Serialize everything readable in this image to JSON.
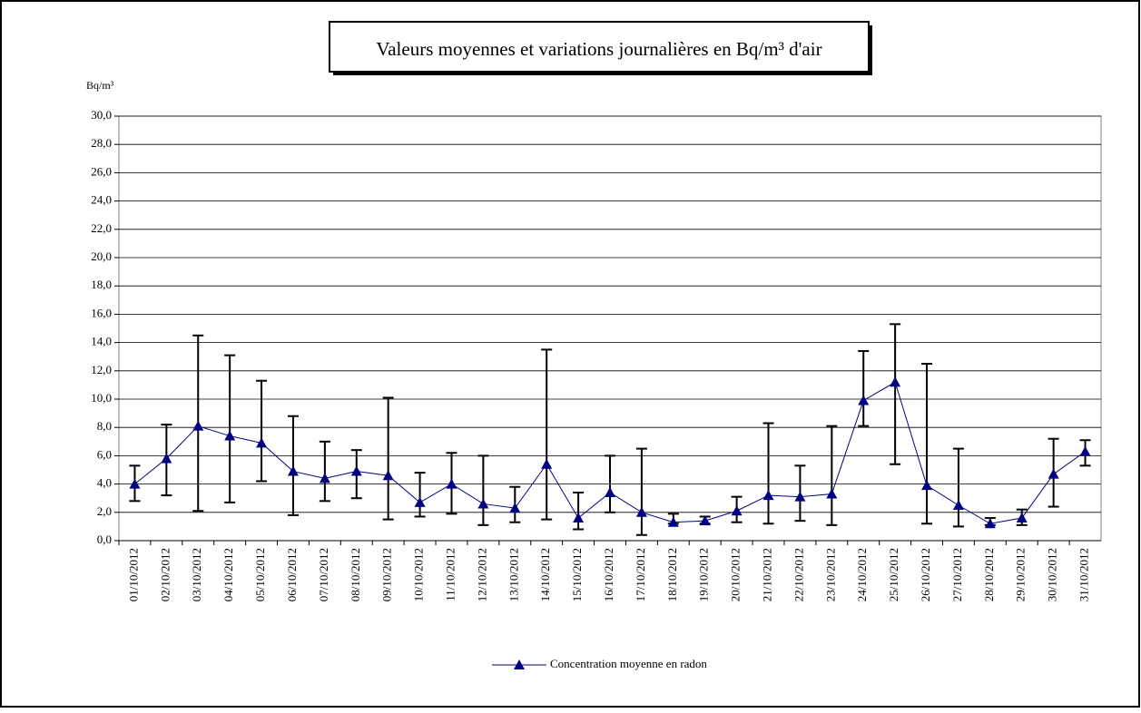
{
  "chart_data": {
    "type": "line",
    "title": "Valeurs moyennes et variations journalières en Bq/m³ d'air",
    "y_label": "Bq/m³",
    "categories": [
      "01/10/2012",
      "02/10/2012",
      "03/10/2012",
      "04/10/2012",
      "05/10/2012",
      "06/10/2012",
      "07/10/2012",
      "08/10/2012",
      "09/10/2012",
      "10/10/2012",
      "11/10/2012",
      "12/10/2012",
      "13/10/2012",
      "14/10/2012",
      "15/10/2012",
      "16/10/2012",
      "17/10/2012",
      "18/10/2012",
      "19/10/2012",
      "20/10/2012",
      "21/10/2012",
      "22/10/2012",
      "23/10/2012",
      "24/10/2012",
      "25/10/2012",
      "26/10/2012",
      "27/10/2012",
      "28/10/2012",
      "29/10/2012",
      "30/10/2012",
      "31/10/2012"
    ],
    "series": [
      {
        "name": "Concentration moyenne en radon",
        "color": "#000080",
        "values": [
          4.0,
          5.8,
          8.1,
          7.4,
          6.9,
          4.9,
          4.4,
          4.9,
          4.6,
          2.7,
          4.0,
          2.6,
          2.3,
          5.4,
          1.6,
          3.4,
          2.0,
          1.3,
          1.4,
          2.1,
          3.2,
          3.1,
          3.3,
          9.9,
          11.2,
          3.9,
          2.5,
          1.2,
          1.6,
          4.7,
          6.3
        ],
        "min": [
          2.8,
          3.2,
          2.1,
          2.7,
          4.2,
          1.8,
          2.8,
          3.0,
          1.5,
          1.7,
          1.9,
          1.1,
          1.3,
          1.5,
          0.8,
          2.0,
          0.4,
          1.2,
          1.2,
          1.3,
          1.2,
          1.4,
          1.1,
          8.1,
          5.4,
          1.2,
          1.0,
          1.1,
          1.1,
          2.4,
          5.3
        ],
        "max": [
          5.3,
          8.2,
          14.5,
          13.1,
          11.3,
          8.8,
          7.0,
          6.4,
          10.1,
          4.8,
          6.2,
          6.0,
          3.8,
          13.5,
          3.4,
          6.0,
          6.5,
          1.9,
          1.7,
          3.1,
          8.3,
          5.3,
          8.1,
          13.4,
          15.3,
          12.5,
          6.5,
          1.6,
          2.2,
          7.2,
          7.1
        ]
      }
    ],
    "ylim": [
      0,
      30
    ],
    "yticks": [
      {
        "value": 0,
        "label": "0,0"
      },
      {
        "value": 2,
        "label": "2,0"
      },
      {
        "value": 4,
        "label": "4,0"
      },
      {
        "value": 6,
        "label": "6,0"
      },
      {
        "value": 8,
        "label": "8,0"
      },
      {
        "value": 10,
        "label": "10,0"
      },
      {
        "value": 12,
        "label": "12,0"
      },
      {
        "value": 14,
        "label": "14,0"
      },
      {
        "value": 16,
        "label": "16,0"
      },
      {
        "value": 18,
        "label": "18,0"
      },
      {
        "value": 20,
        "label": "20,0"
      },
      {
        "value": 22,
        "label": "22,0"
      },
      {
        "value": 24,
        "label": "24,0"
      },
      {
        "value": 26,
        "label": "26,0"
      },
      {
        "value": 28,
        "label": "28,0"
      },
      {
        "value": 30,
        "label": "30,0"
      }
    ],
    "grid": true,
    "legend": "bottom"
  }
}
